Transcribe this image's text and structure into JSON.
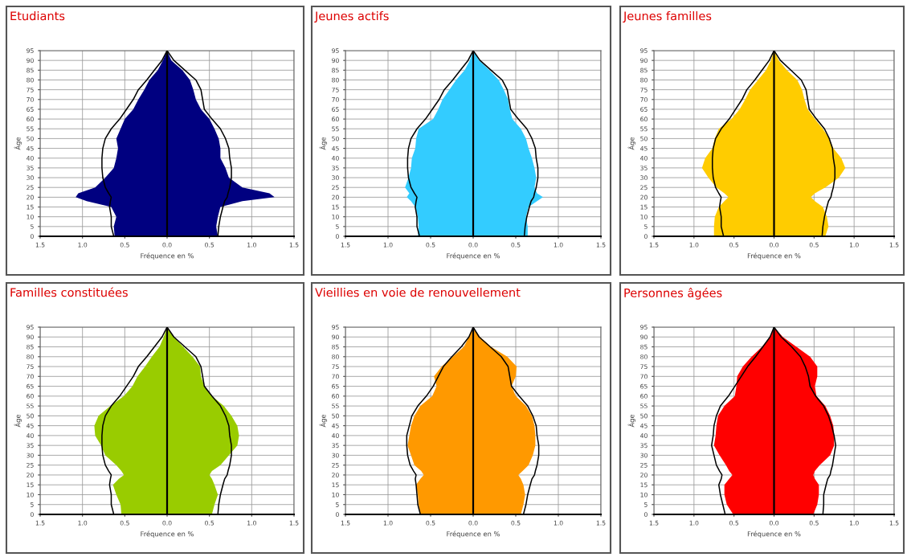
{
  "chart_data": [
    {
      "type": "area",
      "orientation": "horizontal",
      "title": "Etudiants",
      "xlabel": "Fréquence en %",
      "ylabel": "Âge",
      "xlim": [
        -1.5,
        1.5
      ],
      "ylim": [
        0,
        95
      ],
      "grid": true,
      "xticks": [
        {
          "value": -1.5,
          "label": "1.5"
        },
        {
          "value": -1.0,
          "label": "1.0"
        },
        {
          "value": -0.5,
          "label": "0.5"
        },
        {
          "value": 0,
          "label": "0.0"
        },
        {
          "value": 0.5,
          "label": "0.5"
        },
        {
          "value": 1.0,
          "label": "1.0"
        },
        {
          "value": 1.5,
          "label": "1.5"
        }
      ],
      "yticks": [
        0,
        5,
        10,
        15,
        20,
        25,
        30,
        35,
        40,
        45,
        50,
        55,
        60,
        65,
        70,
        75,
        80,
        85,
        90,
        95
      ],
      "ref_lines": [
        {
          "axis": "x",
          "value": 0,
          "color": "#000000"
        }
      ],
      "x": [
        0,
        5,
        10,
        15,
        18,
        20,
        22,
        25,
        30,
        35,
        40,
        45,
        50,
        55,
        60,
        65,
        70,
        75,
        80,
        85,
        90,
        95
      ],
      "series": [
        {
          "color": "#000080",
          "values": [
            -0.62,
            -0.63,
            -0.6,
            -0.66,
            -0.95,
            -1.08,
            -1.05,
            -0.85,
            -0.73,
            -0.63,
            -0.6,
            -0.58,
            -0.6,
            -0.55,
            -0.5,
            -0.4,
            -0.34,
            -0.27,
            -0.21,
            -0.11,
            -0.05,
            0
          ]
        },
        {
          "color": "#000080",
          "values": [
            0.6,
            0.58,
            0.6,
            0.63,
            0.89,
            1.27,
            1.21,
            0.89,
            0.73,
            0.69,
            0.63,
            0.63,
            0.61,
            0.56,
            0.5,
            0.4,
            0.34,
            0.31,
            0.27,
            0.18,
            0.05,
            0
          ]
        },
        {
          "type": "line",
          "color": "#000000",
          "values": [
            -0.63,
            -0.66,
            -0.66,
            -0.68,
            -0.67,
            -0.66,
            -0.69,
            -0.73,
            -0.76,
            -0.77,
            -0.77,
            -0.76,
            -0.73,
            -0.66,
            -0.56,
            -0.48,
            -0.4,
            -0.34,
            -0.24,
            -0.15,
            -0.06,
            0
          ]
        },
        {
          "type": "line",
          "color": "#000000",
          "values": [
            0.6,
            0.61,
            0.63,
            0.66,
            0.68,
            0.71,
            0.72,
            0.74,
            0.76,
            0.76,
            0.74,
            0.73,
            0.69,
            0.63,
            0.53,
            0.44,
            0.42,
            0.4,
            0.34,
            0.21,
            0.08,
            0
          ]
        }
      ]
    },
    {
      "type": "area",
      "orientation": "horizontal",
      "title": "Jeunes actifs",
      "xlabel": "Fréquence en %",
      "ylabel": "Âge",
      "xlim": [
        -1.5,
        1.5
      ],
      "ylim": [
        0,
        95
      ],
      "grid": true,
      "xticks": [
        {
          "value": -1.5,
          "label": "1.5"
        },
        {
          "value": -1.0,
          "label": "1.0"
        },
        {
          "value": -0.5,
          "label": "0.5"
        },
        {
          "value": 0,
          "label": "0.0"
        },
        {
          "value": 0.5,
          "label": "0.5"
        },
        {
          "value": 1.0,
          "label": "1.0"
        },
        {
          "value": 1.5,
          "label": "1.5"
        }
      ],
      "yticks": [
        0,
        5,
        10,
        15,
        20,
        25,
        30,
        35,
        40,
        45,
        50,
        55,
        60,
        65,
        70,
        75,
        80,
        85,
        90,
        95
      ],
      "ref_lines": [
        {
          "axis": "x",
          "value": 0,
          "color": "#000000"
        }
      ],
      "x": [
        0,
        5,
        10,
        15,
        18,
        20,
        22,
        25,
        30,
        35,
        40,
        45,
        50,
        55,
        60,
        65,
        70,
        75,
        80,
        85,
        90,
        95
      ],
      "series": [
        {
          "color": "#33ccff",
          "values": [
            -0.65,
            -0.64,
            -0.65,
            -0.68,
            -0.73,
            -0.78,
            -0.75,
            -0.8,
            -0.76,
            -0.73,
            -0.72,
            -0.68,
            -0.67,
            -0.64,
            -0.47,
            -0.41,
            -0.36,
            -0.28,
            -0.2,
            -0.1,
            -0.04,
            0
          ]
        },
        {
          "color": "#33ccff",
          "values": [
            0.64,
            0.64,
            0.62,
            0.65,
            0.75,
            0.82,
            0.75,
            0.72,
            0.74,
            0.72,
            0.69,
            0.65,
            0.62,
            0.56,
            0.46,
            0.43,
            0.41,
            0.36,
            0.3,
            0.19,
            0.07,
            0
          ]
        },
        {
          "type": "line",
          "color": "#000000",
          "values": [
            -0.63,
            -0.66,
            -0.66,
            -0.68,
            -0.67,
            -0.66,
            -0.69,
            -0.73,
            -0.76,
            -0.77,
            -0.77,
            -0.76,
            -0.73,
            -0.66,
            -0.56,
            -0.48,
            -0.4,
            -0.34,
            -0.24,
            -0.15,
            -0.06,
            0
          ]
        },
        {
          "type": "line",
          "color": "#000000",
          "values": [
            0.6,
            0.61,
            0.63,
            0.66,
            0.68,
            0.71,
            0.72,
            0.74,
            0.76,
            0.76,
            0.74,
            0.73,
            0.69,
            0.63,
            0.53,
            0.44,
            0.42,
            0.4,
            0.34,
            0.21,
            0.08,
            0
          ]
        }
      ]
    },
    {
      "type": "area",
      "orientation": "horizontal",
      "title": "Jeunes familles",
      "xlabel": "Fréquence en %",
      "ylabel": "Âge",
      "xlim": [
        -1.5,
        1.5
      ],
      "ylim": [
        0,
        95
      ],
      "grid": true,
      "xticks": [
        {
          "value": -1.5,
          "label": "1.5"
        },
        {
          "value": -1.0,
          "label": "1.0"
        },
        {
          "value": -0.5,
          "label": "0.5"
        },
        {
          "value": 0,
          "label": "0.0"
        },
        {
          "value": 0.5,
          "label": "0.5"
        },
        {
          "value": 1.0,
          "label": "1.0"
        },
        {
          "value": 1.5,
          "label": "1.5"
        }
      ],
      "yticks": [
        0,
        5,
        10,
        15,
        20,
        25,
        30,
        35,
        40,
        45,
        50,
        55,
        60,
        65,
        70,
        75,
        80,
        85,
        90,
        95
      ],
      "ref_lines": [
        {
          "axis": "x",
          "value": 0,
          "color": "#000000"
        }
      ],
      "x": [
        0,
        5,
        10,
        15,
        18,
        20,
        22,
        25,
        30,
        35,
        40,
        45,
        50,
        55,
        60,
        65,
        70,
        75,
        80,
        85,
        90,
        95
      ],
      "series": [
        {
          "color": "#ffcc00",
          "values": [
            -0.75,
            -0.75,
            -0.74,
            -0.69,
            -0.62,
            -0.57,
            -0.62,
            -0.72,
            -0.82,
            -0.9,
            -0.86,
            -0.77,
            -0.74,
            -0.69,
            -0.53,
            -0.43,
            -0.36,
            -0.3,
            -0.2,
            -0.1,
            -0.04,
            0
          ]
        },
        {
          "color": "#ffcc00",
          "values": [
            0.64,
            0.68,
            0.66,
            0.61,
            0.51,
            0.46,
            0.51,
            0.64,
            0.81,
            0.89,
            0.84,
            0.74,
            0.69,
            0.61,
            0.51,
            0.42,
            0.38,
            0.35,
            0.29,
            0.16,
            0.06,
            0
          ]
        },
        {
          "type": "line",
          "color": "#000000",
          "values": [
            -0.63,
            -0.66,
            -0.66,
            -0.68,
            -0.67,
            -0.66,
            -0.69,
            -0.73,
            -0.76,
            -0.77,
            -0.77,
            -0.76,
            -0.73,
            -0.66,
            -0.56,
            -0.48,
            -0.4,
            -0.34,
            -0.24,
            -0.15,
            -0.06,
            0
          ]
        },
        {
          "type": "line",
          "color": "#000000",
          "values": [
            0.6,
            0.61,
            0.63,
            0.66,
            0.68,
            0.71,
            0.72,
            0.74,
            0.76,
            0.76,
            0.74,
            0.73,
            0.69,
            0.63,
            0.53,
            0.44,
            0.42,
            0.4,
            0.34,
            0.21,
            0.08,
            0
          ]
        }
      ]
    },
    {
      "type": "area",
      "orientation": "horizontal",
      "title": "Familles constituées",
      "xlabel": "Fréquence en %",
      "ylabel": "Âge",
      "xlim": [
        -1.5,
        1.5
      ],
      "ylim": [
        0,
        95
      ],
      "grid": true,
      "xticks": [
        {
          "value": -1.5,
          "label": "1.5"
        },
        {
          "value": -1.0,
          "label": "1.0"
        },
        {
          "value": -0.5,
          "label": "0.5"
        },
        {
          "value": 0,
          "label": "0.0"
        },
        {
          "value": 0.5,
          "label": "0.5"
        },
        {
          "value": 1.0,
          "label": "1.0"
        },
        {
          "value": 1.5,
          "label": "1.5"
        }
      ],
      "yticks": [
        0,
        5,
        10,
        15,
        20,
        25,
        30,
        35,
        40,
        45,
        50,
        55,
        60,
        65,
        70,
        75,
        80,
        85,
        90,
        95
      ],
      "ref_lines": [
        {
          "axis": "x",
          "value": 0,
          "color": "#000000"
        }
      ],
      "x": [
        0,
        5,
        10,
        15,
        18,
        20,
        22,
        25,
        30,
        35,
        40,
        45,
        50,
        55,
        60,
        65,
        70,
        75,
        80,
        85,
        90,
        95
      ],
      "series": [
        {
          "color": "#99cc00",
          "values": [
            -0.54,
            -0.55,
            -0.6,
            -0.64,
            -0.57,
            -0.51,
            -0.54,
            -0.6,
            -0.73,
            -0.78,
            -0.85,
            -0.86,
            -0.81,
            -0.67,
            -0.51,
            -0.41,
            -0.35,
            -0.26,
            -0.18,
            -0.09,
            -0.04,
            0
          ]
        },
        {
          "color": "#99cc00",
          "values": [
            0.53,
            0.56,
            0.6,
            0.56,
            0.53,
            0.5,
            0.53,
            0.63,
            0.73,
            0.83,
            0.85,
            0.83,
            0.76,
            0.67,
            0.53,
            0.44,
            0.4,
            0.39,
            0.3,
            0.19,
            0.08,
            0
          ]
        },
        {
          "type": "line",
          "color": "#000000",
          "values": [
            -0.63,
            -0.66,
            -0.66,
            -0.68,
            -0.67,
            -0.66,
            -0.69,
            -0.73,
            -0.76,
            -0.77,
            -0.77,
            -0.76,
            -0.73,
            -0.66,
            -0.56,
            -0.48,
            -0.4,
            -0.34,
            -0.24,
            -0.15,
            -0.06,
            0
          ]
        },
        {
          "type": "line",
          "color": "#000000",
          "values": [
            0.6,
            0.61,
            0.63,
            0.66,
            0.68,
            0.71,
            0.72,
            0.74,
            0.76,
            0.76,
            0.74,
            0.73,
            0.69,
            0.63,
            0.53,
            0.44,
            0.42,
            0.4,
            0.34,
            0.21,
            0.08,
            0
          ]
        }
      ]
    },
    {
      "type": "area",
      "orientation": "horizontal",
      "title": "Vieillies en voie de renouvellement",
      "xlabel": "Fréquence en %",
      "ylabel": "Âge",
      "xlim": [
        -1.5,
        1.5
      ],
      "ylim": [
        0,
        95
      ],
      "grid": true,
      "xticks": [
        {
          "value": -1.5,
          "label": "1.5"
        },
        {
          "value": -1.0,
          "label": "1.0"
        },
        {
          "value": -0.5,
          "label": "0.5"
        },
        {
          "value": 0,
          "label": "0.0"
        },
        {
          "value": 0.5,
          "label": "0.5"
        },
        {
          "value": 1.0,
          "label": "1.0"
        },
        {
          "value": 1.5,
          "label": "1.5"
        }
      ],
      "yticks": [
        0,
        5,
        10,
        15,
        20,
        25,
        30,
        35,
        40,
        45,
        50,
        55,
        60,
        65,
        70,
        75,
        80,
        85,
        90,
        95
      ],
      "ref_lines": [
        {
          "axis": "x",
          "value": 0,
          "color": "#000000"
        }
      ],
      "x": [
        0,
        5,
        10,
        15,
        18,
        20,
        22,
        25,
        30,
        35,
        40,
        45,
        50,
        55,
        60,
        65,
        70,
        75,
        80,
        85,
        90,
        95
      ],
      "series": [
        {
          "color": "#ff9900",
          "values": [
            -0.62,
            -0.64,
            -0.65,
            -0.67,
            -0.62,
            -0.58,
            -0.61,
            -0.69,
            -0.73,
            -0.77,
            -0.75,
            -0.73,
            -0.69,
            -0.62,
            -0.48,
            -0.43,
            -0.46,
            -0.37,
            -0.24,
            -0.11,
            -0.05,
            0
          ]
        },
        {
          "color": "#ff9900",
          "values": [
            0.56,
            0.59,
            0.61,
            0.59,
            0.56,
            0.53,
            0.58,
            0.65,
            0.7,
            0.73,
            0.73,
            0.72,
            0.69,
            0.62,
            0.5,
            0.45,
            0.5,
            0.51,
            0.4,
            0.21,
            0.08,
            0
          ]
        },
        {
          "type": "line",
          "color": "#000000",
          "values": [
            -0.62,
            -0.65,
            -0.66,
            -0.67,
            -0.68,
            -0.67,
            -0.7,
            -0.74,
            -0.77,
            -0.78,
            -0.78,
            -0.75,
            -0.72,
            -0.65,
            -0.55,
            -0.47,
            -0.41,
            -0.35,
            -0.25,
            -0.14,
            -0.05,
            0
          ]
        },
        {
          "type": "line",
          "color": "#000000",
          "values": [
            0.59,
            0.62,
            0.64,
            0.67,
            0.69,
            0.72,
            0.73,
            0.75,
            0.77,
            0.77,
            0.75,
            0.74,
            0.7,
            0.64,
            0.54,
            0.45,
            0.43,
            0.41,
            0.33,
            0.2,
            0.07,
            0
          ]
        }
      ]
    },
    {
      "type": "area",
      "orientation": "horizontal",
      "title": "Personnes âgées",
      "xlabel": "Fréquence en %",
      "ylabel": "Âge",
      "xlim": [
        -1.5,
        1.5
      ],
      "ylim": [
        0,
        95
      ],
      "grid": true,
      "xticks": [
        {
          "value": -1.5,
          "label": "1.5"
        },
        {
          "value": -1.0,
          "label": "1.0"
        },
        {
          "value": -0.5,
          "label": "0.5"
        },
        {
          "value": 0,
          "label": "0.0"
        },
        {
          "value": 0.5,
          "label": "0.5"
        },
        {
          "value": 1.0,
          "label": "1.0"
        },
        {
          "value": 1.5,
          "label": "1.5"
        }
      ],
      "yticks": [
        0,
        5,
        10,
        15,
        20,
        25,
        30,
        35,
        40,
        45,
        50,
        55,
        60,
        65,
        70,
        75,
        80,
        85,
        90,
        95
      ],
      "ref_lines": [
        {
          "axis": "x",
          "value": 0,
          "color": "#000000"
        }
      ],
      "x": [
        0,
        5,
        10,
        15,
        18,
        20,
        22,
        25,
        30,
        35,
        40,
        45,
        50,
        55,
        60,
        65,
        70,
        75,
        80,
        85,
        90,
        95
      ],
      "series": [
        {
          "color": "#ff0000",
          "values": [
            -0.51,
            -0.59,
            -0.62,
            -0.62,
            -0.56,
            -0.52,
            -0.56,
            -0.6,
            -0.68,
            -0.75,
            -0.73,
            -0.72,
            -0.7,
            -0.62,
            -0.49,
            -0.47,
            -0.46,
            -0.39,
            -0.28,
            -0.15,
            -0.05,
            0
          ]
        },
        {
          "color": "#ff0000",
          "values": [
            0.49,
            0.54,
            0.56,
            0.56,
            0.51,
            0.49,
            0.51,
            0.57,
            0.7,
            0.75,
            0.75,
            0.74,
            0.7,
            0.64,
            0.53,
            0.51,
            0.54,
            0.54,
            0.45,
            0.28,
            0.11,
            0
          ]
        },
        {
          "type": "line",
          "color": "#000000",
          "values": [
            -0.61,
            -0.64,
            -0.67,
            -0.69,
            -0.66,
            -0.65,
            -0.68,
            -0.72,
            -0.75,
            -0.78,
            -0.76,
            -0.75,
            -0.72,
            -0.67,
            -0.57,
            -0.49,
            -0.41,
            -0.33,
            -0.23,
            -0.14,
            -0.05,
            0
          ]
        },
        {
          "type": "line",
          "color": "#000000",
          "values": [
            0.61,
            0.62,
            0.62,
            0.65,
            0.67,
            0.7,
            0.71,
            0.73,
            0.75,
            0.77,
            0.75,
            0.72,
            0.68,
            0.62,
            0.52,
            0.45,
            0.43,
            0.39,
            0.33,
            0.22,
            0.09,
            0
          ]
        }
      ]
    }
  ]
}
